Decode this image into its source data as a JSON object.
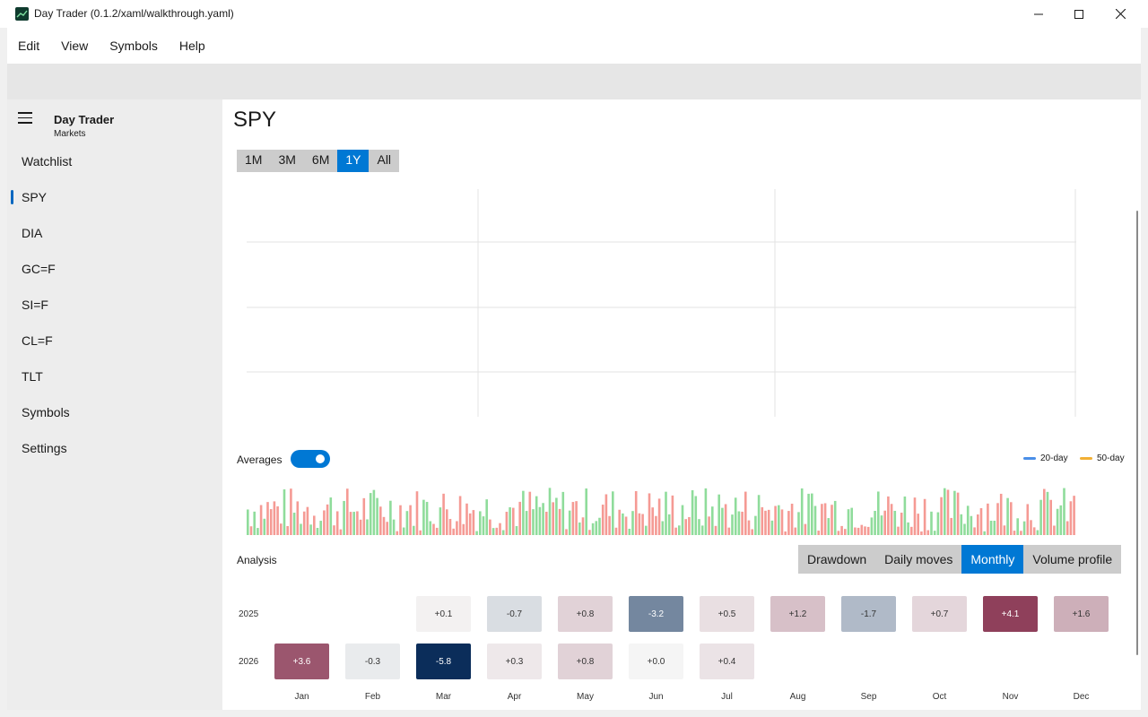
{
  "window": {
    "title": "Day Trader (0.1.2/xaml/walkthrough.yaml)",
    "controls": [
      "minimize-icon",
      "maximize-icon",
      "close-icon"
    ]
  },
  "menu": {
    "items": [
      "Edit",
      "View",
      "Symbols",
      "Help"
    ]
  },
  "sidebar": {
    "app_name": "Day Trader",
    "app_subtitle": "Markets",
    "items": [
      {
        "label": "Watchlist",
        "active": false
      },
      {
        "label": "SPY",
        "active": true
      },
      {
        "label": "DIA",
        "active": false
      },
      {
        "label": "GC=F",
        "active": false
      },
      {
        "label": "SI=F",
        "active": false
      },
      {
        "label": "CL=F",
        "active": false
      },
      {
        "label": "TLT",
        "active": false
      },
      {
        "label": "Symbols",
        "active": false
      },
      {
        "label": "Settings",
        "active": false
      }
    ]
  },
  "main": {
    "title": "SPY",
    "ranges": [
      {
        "label": "1M",
        "active": false
      },
      {
        "label": "3M",
        "active": false
      },
      {
        "label": "6M",
        "active": false
      },
      {
        "label": "1Y",
        "active": true
      },
      {
        "label": "All",
        "active": false
      }
    ],
    "averages_label": "Averages",
    "averages_on": true,
    "legend": [
      {
        "label": "20-day",
        "color": "#4a8fe8"
      },
      {
        "label": "50-day",
        "color": "#f2b035"
      }
    ],
    "analysis_label": "Analysis",
    "analysis_tabs": [
      {
        "label": "Drawdown",
        "active": false
      },
      {
        "label": "Daily moves",
        "active": false
      },
      {
        "label": "Monthly",
        "active": true
      },
      {
        "label": "Volume profile",
        "active": false
      }
    ]
  },
  "heatmap": {
    "months": [
      "Jan",
      "Feb",
      "Mar",
      "Apr",
      "May",
      "Jun",
      "Jul",
      "Aug",
      "Sep",
      "Oct",
      "Nov",
      "Dec"
    ],
    "rows": [
      {
        "year": "2025",
        "values": [
          null,
          null,
          "+0.1",
          "-0.7",
          "+0.8",
          "-3.2",
          "+0.5",
          "+1.2",
          "-1.7",
          "+0.7",
          "+4.1",
          "+1.6"
        ]
      },
      {
        "year": "2026",
        "values": [
          "+3.6",
          "-0.3",
          "-5.8",
          "+0.3",
          "+0.8",
          "+0.0",
          "+0.4",
          null,
          null,
          null,
          null,
          null
        ]
      }
    ]
  },
  "colors": {
    "accent": "#0078d4",
    "up_volume": "#8fdc9b",
    "down_volume": "#f59a94",
    "positive_strong": "#8c3c57",
    "negative_strong": "#0b2d5a"
  }
}
